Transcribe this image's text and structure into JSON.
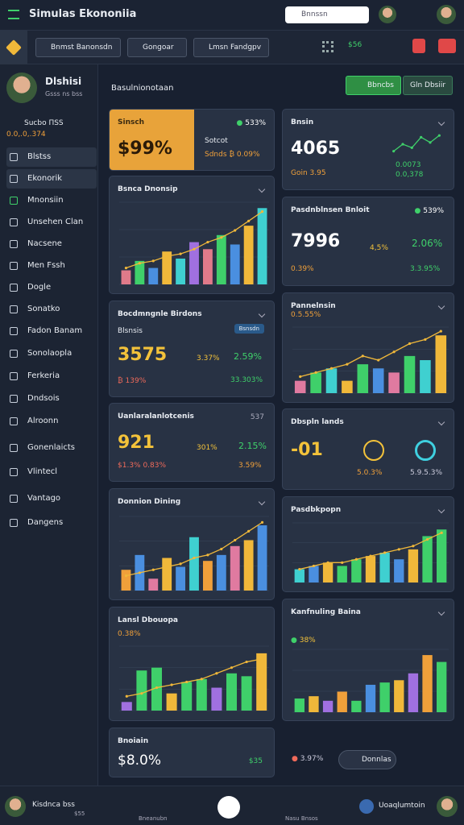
{
  "header": {
    "title": "Simulas Ekononiia",
    "search": "Bnnssn"
  },
  "toolbar": {
    "buttons": [
      "Bnmst Banonsdn",
      "Gongoar",
      "Lmsn Fandgpv"
    ],
    "stat": "$56"
  },
  "profile": {
    "name": "Dlshisi",
    "subtitle": "Gsss ns bss",
    "stat_label": "Sucbo ΠSS",
    "stat_value": "0.0,.0,.374"
  },
  "sidebar": [
    "Blstss",
    "Ekonorik",
    "Mnonsiin",
    "Unsehen Clan",
    "Nacsene",
    "Men Fssh",
    "Dogle",
    "Sonatko",
    "Fadon Banam",
    "Sonolaopla",
    "Ferkeria",
    "Dndsois",
    "Alroonn",
    "Gonenlaicts",
    "Vlintecl",
    "Vantago",
    "Dangens"
  ],
  "main": {
    "title": "Basulnionotaan",
    "buttons": [
      "Bbncbs",
      "Gln Dbsiir"
    ]
  },
  "left": [
    {
      "title": "Sinsch",
      "value": "$99%",
      "badge": "533%",
      "label": "Sotcot",
      "sub": "Sdnds ₿ 0.09%"
    },
    {
      "title": "Bsnca Dnonsip",
      "chart": {
        "values": [
          12,
          20,
          14,
          28,
          22,
          36,
          30,
          42,
          34,
          50,
          65
        ],
        "line": [
          14,
          18,
          20,
          24,
          26,
          30,
          36,
          40,
          46,
          54,
          62
        ],
        "ylim": [
          0,
          70
        ],
        "colors": [
          "#e07a8a",
          "#3fd06a",
          "#4a8fe0",
          "#f0b83a",
          "#3fd0d0",
          "#a070e0"
        ]
      }
    },
    {
      "title": "Bocdmngnle Birdons",
      "pill": "Bsnsdn",
      "label": "Blsnsis",
      "value": "3575",
      "a": "3.37%",
      "b": "2.59%",
      "c": "₿ 139%",
      "d": "33.303%"
    },
    {
      "title": "Uanlaralanlotcenis",
      "corner": "537",
      "value": "921",
      "a": "301%",
      "b": "2.15%",
      "c": "$1.3% 0.83%",
      "d": "3.59%"
    },
    {
      "title": "Donnion Dining",
      "chart": {
        "values": [
          14,
          24,
          8,
          22,
          16,
          36,
          20,
          24,
          30,
          34,
          44
        ],
        "line": [
          10,
          12,
          14,
          16,
          18,
          22,
          24,
          28,
          34,
          40,
          46
        ],
        "ylim": [
          0,
          50
        ],
        "colors": [
          "#f0a03a",
          "#4a8fe0",
          "#e07aa0",
          "#f0b83a",
          "#4a8fe0",
          "#3fd0d0"
        ]
      }
    },
    {
      "title": "Lansl Dbouopa",
      "sub": "0.38%",
      "chart": {
        "values": [
          6,
          28,
          30,
          12,
          20,
          22,
          16,
          26,
          24,
          40
        ],
        "line": [
          10,
          12,
          16,
          18,
          20,
          22,
          26,
          30,
          34,
          36
        ],
        "ylim": [
          0,
          45
        ],
        "colors": [
          "#a070e0",
          "#3fd06a",
          "#3fd06a",
          "#f0b83a",
          "#3fd06a",
          "#3fd06a"
        ]
      }
    },
    {
      "title": "Bnoiain",
      "value": "$8.0%",
      "corner": "$35"
    }
  ],
  "right": [
    {
      "title": "Bnsin",
      "value": "4065",
      "sub": "Goin 3.95",
      "a": "0.0073",
      "b": "0.0,378",
      "chart": {
        "values": [
          4,
          12,
          8,
          20,
          14,
          22
        ],
        "ylim": [
          0,
          24
        ]
      }
    },
    {
      "title": "Pasdnblnsen Bnloit",
      "badge": "539%",
      "value": "7996",
      "a": "4,5%",
      "b": "2.06%",
      "c": "0.39%",
      "d": "3.3.95%"
    },
    {
      "title": "Pannelnsin",
      "sub": "0.5.55%",
      "chart": {
        "values": [
          6,
          10,
          12,
          6,
          14,
          12,
          10,
          18,
          16,
          28
        ],
        "line": [
          8,
          10,
          12,
          14,
          18,
          16,
          20,
          24,
          26,
          30
        ],
        "ylim": [
          0,
          32
        ],
        "colors": [
          "#e07aa0",
          "#3fd06a",
          "#3fd0d0",
          "#f0b83a",
          "#3fd06a",
          "#4a8fe0"
        ]
      }
    },
    {
      "title": "Dbspln lands",
      "value": "-01",
      "a": "5.0.3%",
      "b": "5.9.5.3%"
    },
    {
      "title": "Pasdbkpopn",
      "chart": {
        "values": [
          8,
          10,
          12,
          10,
          14,
          16,
          18,
          14,
          20,
          28,
          32
        ],
        "line": [
          8,
          10,
          12,
          12,
          14,
          16,
          18,
          20,
          22,
          26,
          30
        ],
        "ylim": [
          0,
          36
        ],
        "colors": [
          "#3fd0d0",
          "#4a8fe0",
          "#f0b83a",
          "#3fd06a",
          "#3fd06a",
          "#f0b83a"
        ]
      }
    },
    {
      "title": "Kanfnuling Baina",
      "sub": "38%",
      "chart": {
        "values": [
          12,
          14,
          10,
          18,
          10,
          24,
          26,
          28,
          34,
          50,
          44
        ],
        "ylim": [
          0,
          55
        ],
        "colors": [
          "#3fd06a",
          "#f0b83a",
          "#a070e0",
          "#f0a03a",
          "#3fd06a",
          "#4a8fe0"
        ]
      }
    },
    {
      "value": "3.97%",
      "button": "Donnlas"
    }
  ],
  "bottom": {
    "user": "Kisdnca bss",
    "user_sub": "$55",
    "tabs": [
      "Bneanubn",
      "Nasu Bnsos"
    ],
    "account": "Uoaqlumtoin"
  }
}
